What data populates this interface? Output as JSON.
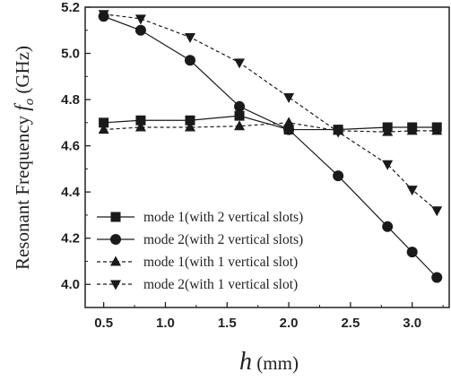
{
  "chart_data": {
    "type": "line",
    "xlabel_var": "h",
    "xlabel_unit": " (mm)",
    "ylabel_prefix": "Resonant  Frequency ",
    "ylabel_var": "f",
    "ylabel_sub": "o",
    "ylabel_unit": " (GHz)",
    "xlim": [
      0.35,
      3.3
    ],
    "ylim": [
      3.9,
      5.2
    ],
    "xticks": [
      "0.5",
      "1.0",
      "1.5",
      "2.0",
      "2.5",
      "3.0"
    ],
    "yticks": [
      "4.0",
      "4.2",
      "4.4",
      "4.6",
      "4.8",
      "5.0",
      "5.2"
    ],
    "series": [
      {
        "name": "mode 1(with 2 vertical slots)",
        "marker": "square",
        "dash": "solid",
        "x": [
          0.5,
          0.8,
          1.2,
          1.6,
          2.0,
          2.4,
          2.8,
          3.0,
          3.2
        ],
        "values": [
          4.7,
          4.71,
          4.71,
          4.73,
          4.67,
          4.67,
          4.68,
          4.68,
          4.68
        ]
      },
      {
        "name": "mode 2(with 2 vertical slots)",
        "marker": "circle",
        "dash": "solid",
        "x": [
          0.5,
          0.8,
          1.2,
          1.6,
          2.0,
          2.4,
          2.8,
          3.0,
          3.2
        ],
        "values": [
          5.16,
          5.1,
          4.97,
          4.77,
          4.67,
          4.47,
          4.25,
          4.14,
          4.03
        ]
      },
      {
        "name": "mode 1(with 1 vertical slot)",
        "marker": "triangle-up",
        "dash": "dashed",
        "x": [
          0.5,
          0.8,
          1.2,
          1.6,
          2.0,
          2.4,
          2.8,
          3.0,
          3.2
        ],
        "values": [
          4.67,
          4.68,
          4.68,
          4.685,
          4.7,
          4.665,
          4.66,
          4.665,
          4.665
        ]
      },
      {
        "name": "mode 2(with 1 vertical slot)",
        "marker": "triangle-down",
        "dash": "dashed",
        "x": [
          0.5,
          0.8,
          1.2,
          1.6,
          2.0,
          2.4,
          2.8,
          3.0,
          3.2
        ],
        "values": [
          5.17,
          5.15,
          5.07,
          4.96,
          4.81,
          4.66,
          4.52,
          4.41,
          4.32
        ]
      }
    ]
  }
}
